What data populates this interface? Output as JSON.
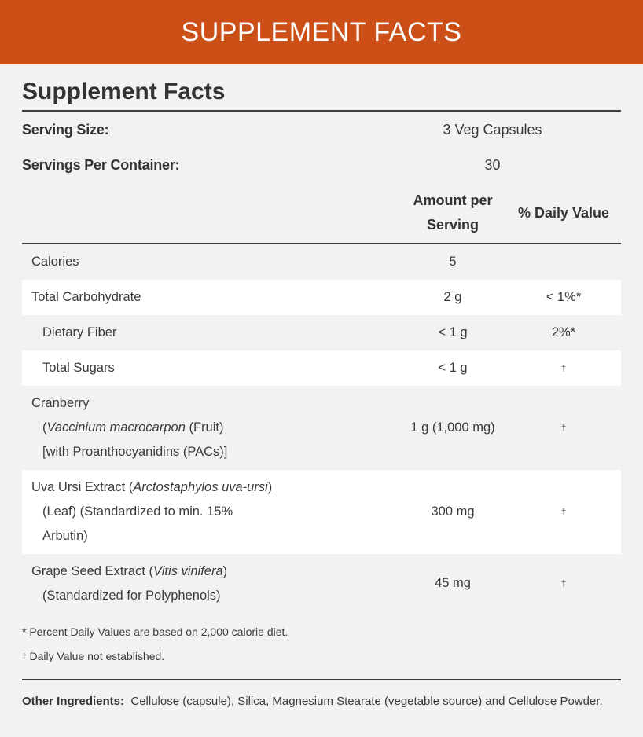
{
  "banner": {
    "title": "SUPPLEMENT FACTS"
  },
  "panel": {
    "title": "Supplement Facts",
    "serving_size": {
      "label": "Serving Size:",
      "value": "3 Veg Capsules"
    },
    "servings_per_container": {
      "label": "Servings Per Container:",
      "value": "30"
    },
    "columns": {
      "amount_line1": "Amount per",
      "amount_line2": "Serving",
      "daily_value": "% Daily Value"
    },
    "rows": [
      {
        "name": "Calories",
        "amount": "5",
        "dv": ""
      },
      {
        "name": "Total Carbohydrate",
        "amount": "2 g",
        "dv": "< 1%*"
      },
      {
        "name": "Dietary Fiber",
        "amount": "< 1 g",
        "dv": "2%*"
      },
      {
        "name": "Total Sugars",
        "amount": "< 1 g",
        "dv": "†"
      },
      {
        "name_line1": "Cranberry",
        "name_line2_italic": "Vaccinium macrocarpon",
        "name_line2_rest": " (Fruit)",
        "name_line3": "[with Proanthocyanidins (PACs)]",
        "amount": "1 g (1,000 mg)",
        "dv": "†"
      },
      {
        "name_line1_plain": "Uva Ursi Extract (",
        "name_line1_italic": "Arctostaphylos uva-ursi",
        "name_line1_end": ")",
        "name_line2": "(Leaf) (Standardized to min. 15%",
        "name_line3": "Arbutin)",
        "amount": "300 mg",
        "dv": "†"
      },
      {
        "name_line1_plain": "Grape Seed Extract (",
        "name_line1_italic": "Vitis vinifera",
        "name_line1_end": ")",
        "name_line2": "(Standardized for Polyphenols)",
        "amount": "45 mg",
        "dv": "†"
      }
    ],
    "footnotes": {
      "percent": "* Percent Daily Values are based on 2,000 calorie diet.",
      "dagger_symbol": "†",
      "dagger_text": " Daily Value not established."
    },
    "other_ingredients": {
      "label": "Other Ingredients:",
      "text": "Cellulose (capsule), Silica, Magnesium Stearate (vegetable source) and Cellulose Powder."
    }
  },
  "colors": {
    "banner": "#cc4f17",
    "background": "#f2f2f2",
    "stripe": "#ffffff",
    "rule": "#3f3f3f"
  }
}
